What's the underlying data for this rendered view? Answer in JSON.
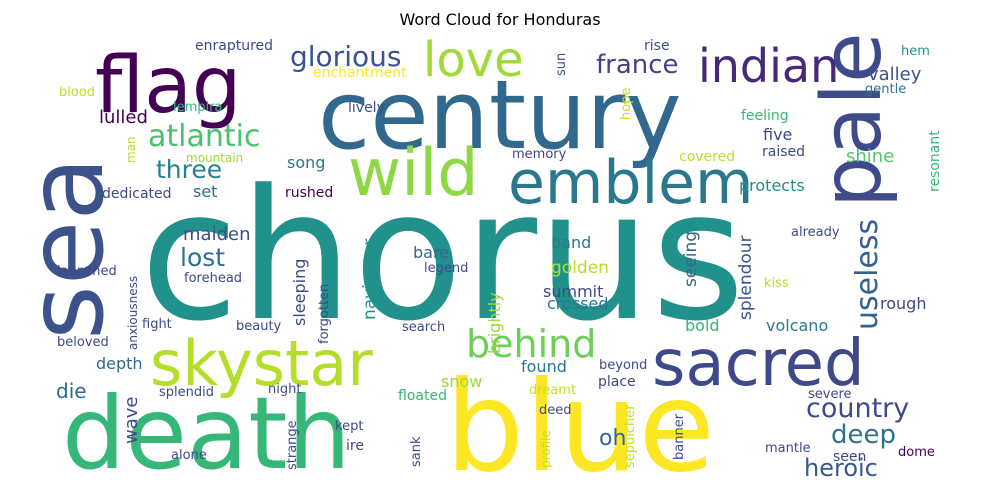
{
  "title": "Word Cloud for Honduras",
  "words": [
    {
      "text": "chorus",
      "color": "#21918c"
    },
    {
      "text": "blue",
      "color": "#fde725"
    },
    {
      "text": "century",
      "color": "#31688e"
    },
    {
      "text": "death",
      "color": "#35b779"
    },
    {
      "text": "sea",
      "color": "#3b528b"
    },
    {
      "text": "flag",
      "color": "#440154"
    },
    {
      "text": "skystar",
      "color": "#b5de2b"
    },
    {
      "text": "sacred",
      "color": "#3e4989"
    },
    {
      "text": "pale",
      "color": "#3e4a89"
    },
    {
      "text": "wild",
      "color": "#8fd744"
    },
    {
      "text": "emblem",
      "color": "#2a788e"
    },
    {
      "text": "indian",
      "color": "#482878"
    },
    {
      "text": "love",
      "color": "#a0da39"
    },
    {
      "text": "behind",
      "color": "#6ece58"
    },
    {
      "text": "atlantic",
      "color": "#4ac16d"
    },
    {
      "text": "glorious",
      "color": "#3b528b"
    },
    {
      "text": "france",
      "color": "#414487"
    },
    {
      "text": "useless",
      "color": "#34618d"
    },
    {
      "text": "country",
      "color": "#3e4a89"
    },
    {
      "text": "deep",
      "color": "#2c728e"
    },
    {
      "text": "heroic",
      "color": "#38598c"
    },
    {
      "text": "three",
      "color": "#26828e"
    },
    {
      "text": "lost",
      "color": "#2e6e8e"
    },
    {
      "text": "maiden",
      "color": "#3d4d8a"
    },
    {
      "text": "valley",
      "color": "#3a548c"
    },
    {
      "text": "shine",
      "color": "#54c568"
    },
    {
      "text": "lulled",
      "color": "#440154"
    },
    {
      "text": "oh",
      "color": "#31688e"
    },
    {
      "text": "die",
      "color": "#31688e"
    },
    {
      "text": "wave",
      "color": "#3e4a89"
    },
    {
      "text": "enraptured",
      "color": "#3e4989"
    },
    {
      "text": "rise",
      "color": "#3b528b"
    },
    {
      "text": "hem",
      "color": "#21918c"
    },
    {
      "text": "blood",
      "color": "#c2df23"
    },
    {
      "text": "enchantment",
      "color": "#fde725"
    },
    {
      "text": "sun",
      "color": "#3b528b"
    },
    {
      "text": "gentle",
      "color": "#2a788e"
    },
    {
      "text": "lempira",
      "color": "#35b779"
    },
    {
      "text": "lively",
      "color": "#3b528b"
    },
    {
      "text": "hope",
      "color": "#c2df23"
    },
    {
      "text": "feeling",
      "color": "#35b779"
    },
    {
      "text": "five",
      "color": "#3e4a89"
    },
    {
      "text": "resonant",
      "color": "#35b779"
    },
    {
      "text": "man",
      "color": "#b5de2b"
    },
    {
      "text": "mountain",
      "color": "#a0da39"
    },
    {
      "text": "song",
      "color": "#2a788e"
    },
    {
      "text": "memory",
      "color": "#3e4989"
    },
    {
      "text": "covered",
      "color": "#c2df23"
    },
    {
      "text": "raised",
      "color": "#3e4989"
    },
    {
      "text": "dedicated",
      "color": "#3e4989"
    },
    {
      "text": "set",
      "color": "#31688e"
    },
    {
      "text": "rushed",
      "color": "#440154"
    },
    {
      "text": "protects",
      "color": "#21918c"
    },
    {
      "text": "already",
      "color": "#3e4989"
    },
    {
      "text": "navigator",
      "color": "#21918c"
    },
    {
      "text": "band",
      "color": "#2a788e"
    },
    {
      "text": "seeing",
      "color": "#31688e"
    },
    {
      "text": "splendour",
      "color": "#3b528b"
    },
    {
      "text": "bare",
      "color": "#31688e"
    },
    {
      "text": "sleeping",
      "color": "#3e4989"
    },
    {
      "text": "brightly",
      "color": "#a0da39"
    },
    {
      "text": "golden",
      "color": "#b5de2b"
    },
    {
      "text": "launched",
      "color": "#3e4989"
    },
    {
      "text": "anxiousness",
      "color": "#3e4989"
    },
    {
      "text": "legend",
      "color": "#3e4989"
    },
    {
      "text": "forehead",
      "color": "#3e4989"
    },
    {
      "text": "forgotten",
      "color": "#3e4989"
    },
    {
      "text": "kiss",
      "color": "#b5de2b"
    },
    {
      "text": "summit",
      "color": "#3e4989"
    },
    {
      "text": "crossed",
      "color": "#2a788e"
    },
    {
      "text": "rough",
      "color": "#3e4989"
    },
    {
      "text": "fight",
      "color": "#3e4989"
    },
    {
      "text": "beauty",
      "color": "#3e4989"
    },
    {
      "text": "search",
      "color": "#3e4989"
    },
    {
      "text": "bold",
      "color": "#35b779"
    },
    {
      "text": "volcano",
      "color": "#2a788e"
    },
    {
      "text": "beloved",
      "color": "#3e4989"
    },
    {
      "text": "depth",
      "color": "#31688e"
    },
    {
      "text": "found",
      "color": "#2a788e"
    },
    {
      "text": "beyond",
      "color": "#3e4989"
    },
    {
      "text": "splendid",
      "color": "#3e4989"
    },
    {
      "text": "night",
      "color": "#3e4989"
    },
    {
      "text": "snow",
      "color": "#a0da39"
    },
    {
      "text": "dreamt",
      "color": "#c2df23"
    },
    {
      "text": "place",
      "color": "#3e4989"
    },
    {
      "text": "severe",
      "color": "#3e4989"
    },
    {
      "text": "floated",
      "color": "#35b779"
    },
    {
      "text": "deed",
      "color": "#3e4989"
    },
    {
      "text": "seen",
      "color": "#3e4989"
    },
    {
      "text": "kept",
      "color": "#3e4989"
    },
    {
      "text": "ire",
      "color": "#3e4989"
    },
    {
      "text": "sank",
      "color": "#3e4989"
    },
    {
      "text": "profile",
      "color": "#c2df23"
    },
    {
      "text": "sepulcher",
      "color": "#c2df23"
    },
    {
      "text": "banner",
      "color": "#3e4989"
    },
    {
      "text": "mantle",
      "color": "#3e4989"
    },
    {
      "text": "dome",
      "color": "#440154"
    },
    {
      "text": "strange",
      "color": "#3e4989"
    },
    {
      "text": "alone",
      "color": "#3e4989"
    }
  ]
}
